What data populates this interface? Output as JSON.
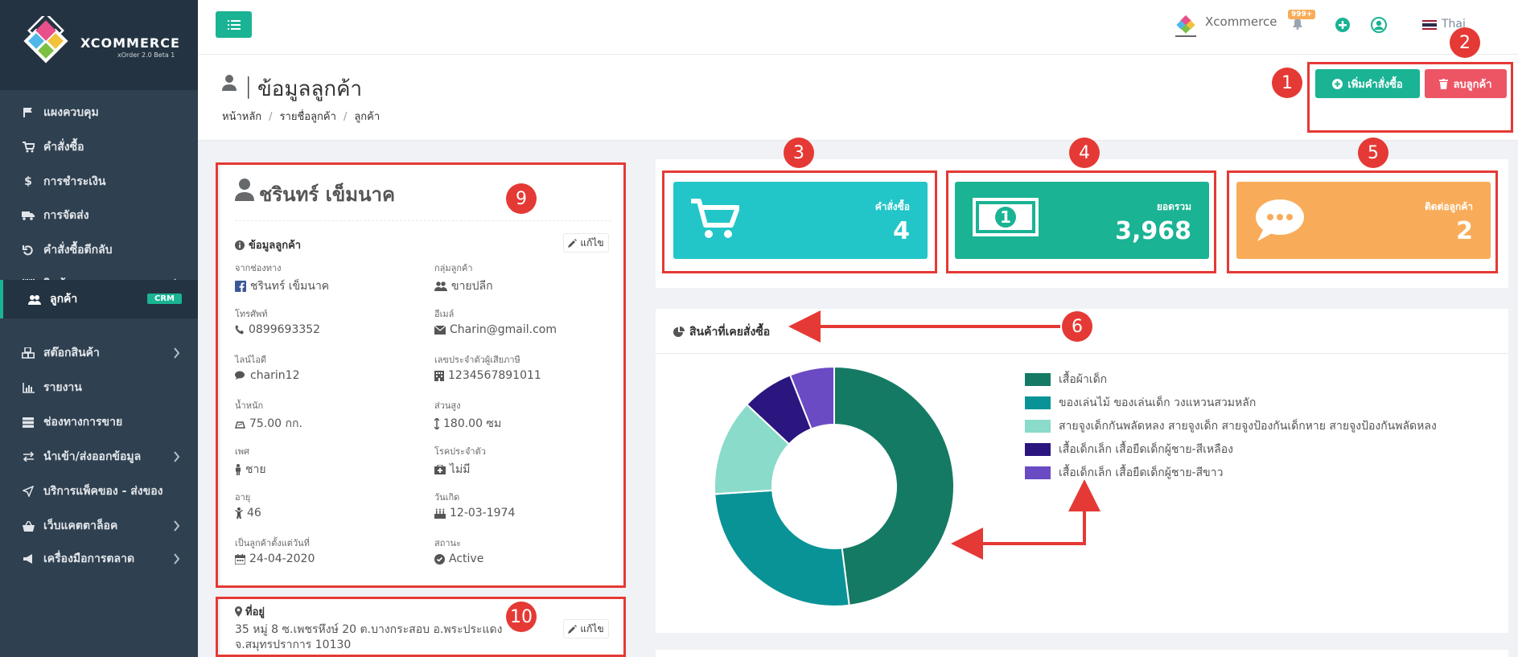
{
  "sidebar": {
    "brand": "XCOMMERCE",
    "version": "xOrder 2.0 Beta 1",
    "items": [
      {
        "label": "แผงควบคุม"
      },
      {
        "label": "คำสั่งซื้อ"
      },
      {
        "label": "การชำระเงิน"
      },
      {
        "label": "การจัดส่ง"
      },
      {
        "label": "คำสั่งซื้อตีกลับ"
      },
      {
        "label": "สินค้า"
      },
      {
        "label": "ลูกค้า",
        "badge": "CRM"
      },
      {
        "label": "สต๊อกสินค้า"
      },
      {
        "label": "รายงาน"
      },
      {
        "label": "ช่องทางการขาย"
      },
      {
        "label": "นำเข้า/ส่งออกข้อมูล"
      },
      {
        "label": "บริการแพ็คของ - ส่งของ"
      },
      {
        "label": "เว็บแคตตาล็อค"
      },
      {
        "label": "เครื่องมือการตลาด"
      }
    ]
  },
  "topbar": {
    "brand": "Xcommerce",
    "notification_count": "999+",
    "language": "Thai"
  },
  "header": {
    "title": "ข้อมูลลูกค้า",
    "breadcrumb": [
      "หน้าหลัก",
      "รายชื่อลูกค้า",
      "ลูกค้า"
    ],
    "add_order_label": "เพิ่มคำสั่งซื้อ",
    "delete_customer_label": "ลบลูกค้า"
  },
  "profile": {
    "name": "ชรินทร์ เข็มนาค",
    "info_title": "ข้อมูลลูกค้า",
    "edit_label": "แก้ไข",
    "fields": [
      {
        "label": "จากช่องทาง",
        "value": "ชรินทร์ เข็มนาค",
        "icon": "facebook-icon"
      },
      {
        "label": "กลุ่มลูกค้า",
        "value": "ขายปลีก",
        "icon": "users-icon"
      },
      {
        "label": "โทรศัพท์",
        "value": "0899693352",
        "icon": "phone-icon"
      },
      {
        "label": "อีเมล์",
        "value": "Charin@gmail.com",
        "icon": "envelope-icon"
      },
      {
        "label": "ไลน์ไอดี",
        "value": "charin12",
        "icon": "comments-icon"
      },
      {
        "label": "เลขประจำตัวผู้เสียภาษี",
        "value": "1234567891011",
        "icon": "building-icon"
      },
      {
        "label": "น้ำหนัก",
        "value": "75.00 กก.",
        "icon": "scale-icon"
      },
      {
        "label": "ส่วนสูง",
        "value": "180.00 ซม",
        "icon": "height-icon"
      },
      {
        "label": "เพศ",
        "value": "ชาย",
        "icon": "male-icon"
      },
      {
        "label": "โรคประจำตัว",
        "value": "ไม่มี",
        "icon": "medkit-icon"
      },
      {
        "label": "อายุ",
        "value": "46",
        "icon": "child-icon"
      },
      {
        "label": "วันเกิด",
        "value": "12-03-1974",
        "icon": "birthday-cake-icon"
      },
      {
        "label": "เป็นลูกค้าตั้งแต่วันที่",
        "value": "24-04-2020",
        "icon": "calendar-icon"
      },
      {
        "label": "สถานะ",
        "value": "Active",
        "icon": "check-circle-icon"
      }
    ]
  },
  "address": {
    "title": "ที่อยู่",
    "line1": "35 หมู่ 8 ซ.เพชรหึงษ์ 20 ต.บางกระสอบ อ.พระประแดง",
    "line2": "จ.สมุทรปราการ 10130",
    "edit_label": "แก้ไข"
  },
  "stats": {
    "orders": {
      "label": "คำสั่งซื้อ",
      "value": "4"
    },
    "total": {
      "label": "ยอดรวม",
      "value": "3,968"
    },
    "contacts": {
      "label": "ติดต่อลูกค้า",
      "value": "2"
    }
  },
  "chart_data": {
    "type": "pie",
    "title": "สินค้าที่เคยสั่งซื้อ",
    "categories": [
      "เสื้อผ้าเด็ก",
      "ของเล่นไม้ ของเล่นเด็ก วงแหวนสวมหลัก",
      "สายจูงเด็กกันพลัดหลง สายจูงเด็ก สายจูงป้องกันเด็กหาย สายจูงป้องกันพลัดหลง",
      "เสื้อเด็กเล็ก เสื้อยืดเด็กผู้ชาย-สีเหลือง",
      "เสื้อเด็กเล็ก เสื้อยืดเด็กผู้ชาย-สีขาว"
    ],
    "values": [
      48,
      26,
      13,
      7,
      6
    ],
    "colors": [
      "#157a64",
      "#0a9396",
      "#8adbc9",
      "#2b1680",
      "#6a4bc4"
    ],
    "legend": "right"
  },
  "annotations": [
    "1",
    "2",
    "3",
    "4",
    "5",
    "6",
    "9",
    "10"
  ],
  "colors": {
    "accent": "#1ab394",
    "danger": "#ed5565",
    "sidebar": "#2f4050",
    "highlight": "#e53935"
  }
}
